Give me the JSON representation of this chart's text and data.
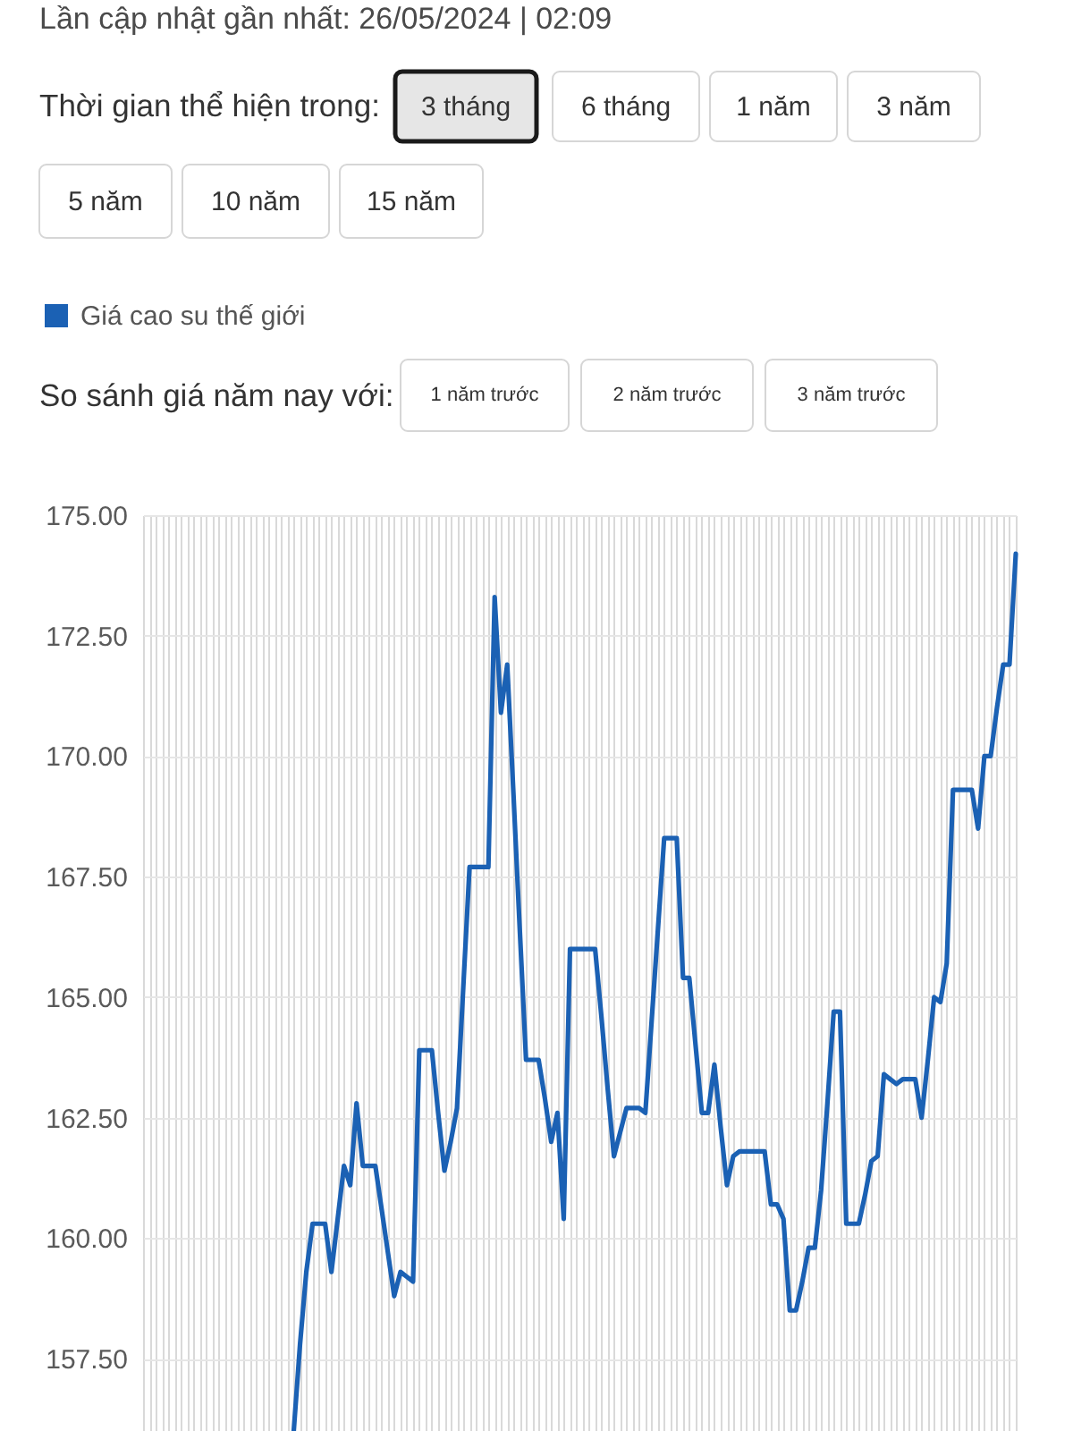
{
  "chart_data": {
    "type": "line",
    "annotations": [
      "Lần cập nhật gần nhất: 26/05/2024 | 02:09",
      "Thời gian thể hiện trong:",
      "3 tháng",
      "6 tháng",
      "1 năm",
      "3 năm",
      "5 năm",
      "10 năm",
      "15 năm",
      "So sánh giá năm nay với:",
      "1 năm trước",
      "2 năm trước",
      "3 năm trước"
    ],
    "categories": [
      null,
      null,
      null,
      null,
      null,
      null,
      null,
      null,
      null,
      null,
      null,
      null,
      null,
      null,
      null,
      null,
      null,
      null,
      null,
      null,
      null,
      null,
      null,
      null,
      null,
      null,
      null,
      null,
      null,
      null,
      null,
      null,
      null,
      null,
      null,
      null,
      null,
      null,
      null,
      null,
      null,
      null,
      null,
      null,
      null,
      null,
      null,
      null,
      null,
      null,
      null,
      null,
      null,
      null,
      null,
      null,
      null,
      null,
      null,
      null,
      null,
      null,
      null,
      null,
      null,
      null,
      null,
      null,
      null,
      null,
      null,
      null,
      null,
      null,
      null,
      null,
      null,
      null,
      null,
      null,
      null,
      null,
      null,
      null,
      null,
      null,
      null,
      null,
      null,
      null,
      null,
      null,
      null,
      null,
      null,
      null,
      null,
      null,
      null,
      null,
      null,
      null,
      null,
      null,
      null,
      null,
      null,
      null,
      null,
      null,
      null,
      null,
      null,
      null,
      null,
      null,
      null,
      null,
      null,
      null,
      null,
      null,
      null,
      null,
      null,
      null,
      null,
      null,
      null,
      null,
      null,
      null,
      null,
      null,
      null,
      null,
      null,
      null,
      null,
      null
    ],
    "series": [
      {
        "name": "Giá cao su thế giới",
        "color": "#1b61b4",
        "values": [
          null,
          null,
          null,
          null,
          null,
          null,
          null,
          null,
          null,
          null,
          null,
          null,
          null,
          null,
          null,
          null,
          null,
          null,
          null,
          null,
          null,
          null,
          null,
          null,
          156.0,
          157.8,
          159.3,
          160.3,
          160.3,
          160.3,
          159.3,
          160.4,
          161.5,
          161.1,
          162.8,
          161.5,
          161.5,
          161.5,
          160.6,
          159.7,
          158.8,
          159.3,
          159.2,
          159.1,
          163.9,
          163.9,
          163.9,
          162.6,
          161.4,
          162.0,
          162.7,
          165.2,
          167.7,
          167.7,
          167.7,
          167.7,
          173.3,
          170.9,
          171.9,
          169.2,
          166.4,
          163.7,
          163.7,
          163.7,
          162.9,
          162.0,
          162.6,
          160.4,
          166.0,
          166.0,
          166.0,
          166.0,
          166.0,
          164.6,
          163.1,
          161.7,
          162.2,
          162.7,
          162.7,
          162.7,
          162.6,
          164.5,
          166.4,
          168.3,
          168.3,
          168.3,
          165.4,
          165.4,
          164.0,
          162.6,
          162.6,
          163.6,
          162.3,
          161.1,
          161.7,
          161.8,
          161.8,
          161.8,
          161.8,
          161.8,
          160.7,
          160.7,
          160.4,
          158.5,
          158.5,
          159.1,
          159.8,
          159.8,
          161.0,
          162.8,
          164.7,
          164.7,
          160.3,
          160.3,
          160.3,
          160.9,
          161.6,
          161.7,
          163.4,
          163.3,
          163.2,
          163.3,
          163.3,
          163.3,
          162.5,
          163.7,
          165.0,
          164.9,
          165.7,
          169.3,
          169.3,
          169.3,
          169.3,
          168.5,
          170.0,
          170.0,
          171.0,
          171.9,
          171.9,
          174.2
        ]
      }
    ],
    "ylim": [
      156,
      175
    ],
    "yticks": [
      {
        "value": 157.5,
        "label": "157.50"
      },
      {
        "value": 160,
        "label": "160.00"
      },
      {
        "value": 162.5,
        "label": "162.50"
      },
      {
        "value": 165,
        "label": "165.00"
      },
      {
        "value": 167.5,
        "label": "167.50"
      },
      {
        "value": 170,
        "label": "170.00"
      },
      {
        "value": 172.5,
        "label": "172.50"
      },
      {
        "value": 175,
        "label": "175.00"
      }
    ],
    "grid": true,
    "legend": "top left",
    "tick_labels": "y"
  }
}
